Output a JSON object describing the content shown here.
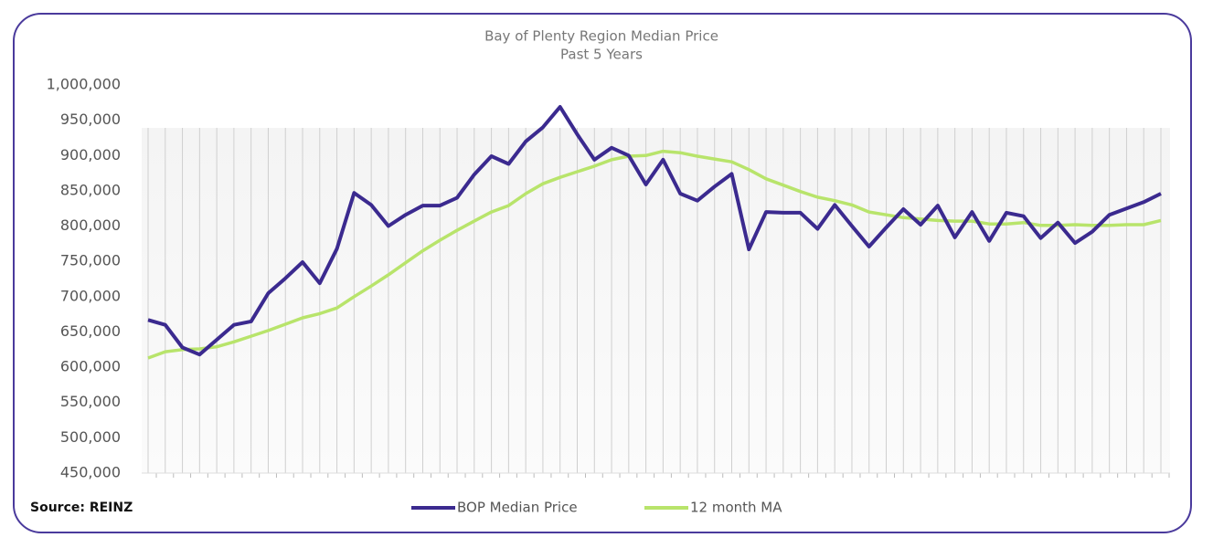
{
  "chart_data": {
    "type": "line",
    "title": "Bay of Plenty Region Median Price",
    "subtitle": "Past 5 Years",
    "annotation": "Source: REINZ",
    "legend": "bottom",
    "grid": true,
    "categories": [
      null,
      null,
      null,
      null,
      null,
      null,
      null,
      null,
      null,
      null,
      null,
      null,
      null,
      null,
      null,
      null,
      null,
      null,
      null,
      null,
      null,
      null,
      null,
      null,
      null,
      null,
      null,
      null,
      null,
      null,
      null,
      null,
      null,
      null,
      null,
      null,
      null,
      null,
      null,
      null,
      null,
      null,
      null,
      null,
      null,
      null,
      null,
      null,
      null,
      null,
      null,
      null,
      null,
      null,
      null,
      null,
      null,
      null,
      null,
      null
    ],
    "ylim": [
      450000,
      1000000
    ],
    "yticks": [
      {
        "value": 450000,
        "label": "450,000"
      },
      {
        "value": 500000,
        "label": "500,000"
      },
      {
        "value": 550000,
        "label": "550,000"
      },
      {
        "value": 600000,
        "label": "600,000"
      },
      {
        "value": 650000,
        "label": "650,000"
      },
      {
        "value": 700000,
        "label": "700,000"
      },
      {
        "value": 750000,
        "label": "750,000"
      },
      {
        "value": 800000,
        "label": "800,000"
      },
      {
        "value": 850000,
        "label": "850,000"
      },
      {
        "value": 900000,
        "label": "900,000"
      },
      {
        "value": 950000,
        "label": "950,000"
      },
      {
        "value": 1000000,
        "label": "1,000,000"
      }
    ],
    "series": [
      {
        "name": "BOP Median Price",
        "color": "#3b2a8f",
        "values": [
          667000,
          660000,
          628000,
          618000,
          639000,
          660000,
          665000,
          705000,
          726000,
          749000,
          719000,
          768000,
          847000,
          830000,
          800000,
          816000,
          829000,
          829000,
          840000,
          873000,
          899000,
          888000,
          920000,
          940000,
          969000,
          930000,
          894000,
          911000,
          900000,
          859000,
          894000,
          846000,
          836000,
          856000,
          874000,
          767000,
          820000,
          819000,
          819000,
          796000,
          830000,
          800000,
          771000,
          798000,
          824000,
          802000,
          829000,
          784000,
          820000,
          779000,
          819000,
          814000,
          783000,
          805000,
          776000,
          792000,
          816000,
          825000,
          834000,
          846000
        ]
      },
      {
        "name": "12 month MA",
        "color": "#b8e46b",
        "values": [
          613000,
          622000,
          625000,
          626000,
          629000,
          636000,
          644000,
          652000,
          661000,
          670000,
          676000,
          684000,
          700000,
          715000,
          731000,
          748000,
          765000,
          780000,
          794000,
          807000,
          820000,
          829000,
          846000,
          860000,
          869000,
          877000,
          885000,
          894000,
          899000,
          900000,
          906000,
          904000,
          899000,
          895000,
          891000,
          880000,
          867000,
          858000,
          849000,
          841000,
          836000,
          830000,
          820000,
          816000,
          812000,
          810000,
          808000,
          807000,
          807000,
          803000,
          803000,
          805000,
          801000,
          801000,
          802000,
          801000,
          801000,
          802000,
          802000,
          808000
        ]
      }
    ]
  }
}
